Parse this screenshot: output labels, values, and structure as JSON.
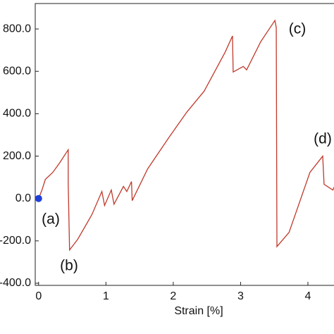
{
  "chart_data": {
    "type": "line",
    "x_label": "Strain [%]",
    "x": [
      0,
      0.05,
      0.1,
      0.21,
      0.31,
      0.44,
      0.44,
      0.46,
      0.58,
      0.79,
      0.94,
      0.98,
      1.08,
      1.12,
      1.26,
      1.31,
      1.38,
      1.39,
      1.62,
      1.94,
      2.2,
      2.46,
      2.77,
      2.88,
      2.89,
      3.04,
      3.09,
      3.3,
      3.51,
      3.53,
      3.54,
      3.72,
      4.03,
      4.22,
      4.24,
      4.37,
      4.4
    ],
    "values": [
      0,
      40,
      90,
      123,
      167,
      230,
      67,
      -243,
      -193,
      -77,
      33,
      -33,
      40,
      -27,
      57,
      33,
      80,
      -10,
      140,
      290,
      407,
      507,
      690,
      767,
      597,
      623,
      607,
      740,
      840,
      807,
      -227,
      -160,
      123,
      200,
      67,
      40,
      60
    ],
    "color": "#c0392b",
    "marker": {
      "x": 0,
      "y": 0,
      "color": "#1f3fd6"
    },
    "annotations": [
      "(a)",
      "(b)",
      "(c)",
      "(d)"
    ],
    "xlim": [
      -0.05,
      4.44
    ],
    "ylim": [
      -410,
      920
    ],
    "xticks": [
      0,
      1,
      2,
      3,
      4
    ],
    "yticks": [
      {
        "value": 800,
        "label": "800.0"
      },
      {
        "value": 600,
        "label": "600.0"
      },
      {
        "value": 400,
        "label": "400.0"
      },
      {
        "value": 200,
        "label": "200.0"
      },
      {
        "value": 0,
        "label": "0.0"
      },
      {
        "value": -200,
        "label": "-200.0"
      },
      {
        "value": -400,
        "label": "-400.0"
      }
    ]
  }
}
